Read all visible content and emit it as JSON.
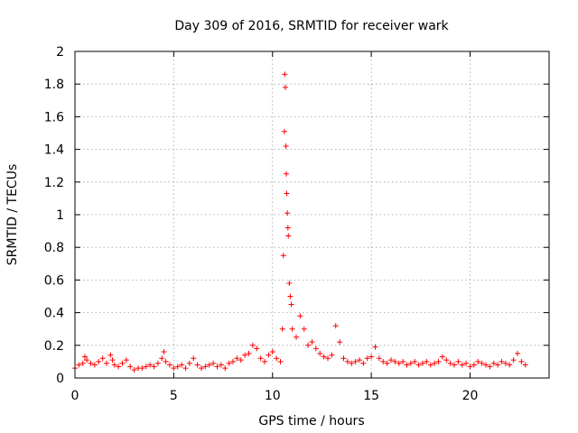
{
  "chart_data": {
    "type": "scatter",
    "title": "Day 309 of 2016, SRMTID for receiver wark",
    "xlabel": "GPS time / hours",
    "ylabel": "SRMTID / TECUs",
    "xlim": [
      0,
      24
    ],
    "ylim": [
      0,
      2
    ],
    "x_ticks": [
      0,
      5,
      10,
      15,
      20
    ],
    "y_ticks": [
      0,
      0.2,
      0.4,
      0.6,
      0.8,
      1,
      1.2,
      1.4,
      1.6,
      1.8,
      2
    ],
    "x_tick_labels": [
      "0",
      "5",
      "10",
      "15",
      "20"
    ],
    "y_tick_labels": [
      "0",
      "0.2",
      "0.4",
      "0.6",
      "0.8",
      "1",
      "1.2",
      "1.4",
      "1.6",
      "1.8",
      "2"
    ],
    "grid": true,
    "marker": "+",
    "marker_color": "#ff0000",
    "series": [
      {
        "name": "SRMTID",
        "x": [
          0.0,
          0.2,
          0.4,
          0.5,
          0.6,
          0.8,
          1.0,
          1.2,
          1.4,
          1.6,
          1.8,
          1.9,
          2.0,
          2.2,
          2.4,
          2.6,
          2.8,
          3.0,
          3.2,
          3.4,
          3.6,
          3.8,
          4.0,
          4.2,
          4.4,
          4.5,
          4.6,
          4.8,
          5.0,
          5.2,
          5.4,
          5.6,
          5.8,
          6.0,
          6.2,
          6.4,
          6.6,
          6.8,
          7.0,
          7.2,
          7.4,
          7.6,
          7.8,
          8.0,
          8.2,
          8.4,
          8.6,
          8.8,
          9.0,
          9.2,
          9.4,
          9.6,
          9.8,
          10.0,
          10.2,
          10.4,
          10.5,
          10.55,
          10.6,
          10.62,
          10.65,
          10.68,
          10.7,
          10.72,
          10.75,
          10.78,
          10.8,
          10.85,
          10.9,
          10.95,
          11.0,
          11.2,
          11.4,
          11.6,
          11.8,
          12.0,
          12.2,
          12.4,
          12.6,
          12.8,
          13.0,
          13.2,
          13.4,
          13.6,
          13.8,
          14.0,
          14.2,
          14.4,
          14.6,
          14.8,
          15.0,
          15.2,
          15.4,
          15.6,
          15.8,
          16.0,
          16.2,
          16.4,
          16.6,
          16.8,
          17.0,
          17.2,
          17.4,
          17.6,
          17.8,
          18.0,
          18.2,
          18.4,
          18.6,
          18.8,
          19.0,
          19.2,
          19.4,
          19.6,
          19.8,
          20.0,
          20.2,
          20.4,
          20.6,
          20.8,
          21.0,
          21.2,
          21.4,
          21.6,
          21.8,
          22.0,
          22.2,
          22.4,
          22.6,
          22.8
        ],
        "y": [
          0.06,
          0.08,
          0.09,
          0.13,
          0.11,
          0.09,
          0.08,
          0.1,
          0.12,
          0.09,
          0.14,
          0.11,
          0.08,
          0.07,
          0.09,
          0.11,
          0.07,
          0.05,
          0.06,
          0.06,
          0.07,
          0.08,
          0.07,
          0.09,
          0.12,
          0.16,
          0.1,
          0.08,
          0.06,
          0.07,
          0.08,
          0.06,
          0.09,
          0.12,
          0.08,
          0.06,
          0.07,
          0.08,
          0.09,
          0.07,
          0.08,
          0.06,
          0.09,
          0.1,
          0.12,
          0.11,
          0.14,
          0.15,
          0.2,
          0.18,
          0.12,
          0.1,
          0.14,
          0.16,
          0.12,
          0.1,
          0.3,
          0.75,
          1.51,
          1.86,
          1.78,
          1.42,
          1.25,
          1.13,
          1.01,
          0.92,
          0.87,
          0.58,
          0.5,
          0.45,
          0.3,
          0.25,
          0.38,
          0.3,
          0.2,
          0.22,
          0.18,
          0.15,
          0.13,
          0.12,
          0.14,
          0.32,
          0.22,
          0.12,
          0.1,
          0.09,
          0.1,
          0.11,
          0.09,
          0.12,
          0.13,
          0.19,
          0.12,
          0.1,
          0.09,
          0.11,
          0.1,
          0.09,
          0.1,
          0.08,
          0.09,
          0.1,
          0.08,
          0.09,
          0.1,
          0.08,
          0.09,
          0.1,
          0.13,
          0.11,
          0.09,
          0.08,
          0.1,
          0.08,
          0.09,
          0.07,
          0.08,
          0.1,
          0.09,
          0.08,
          0.07,
          0.09,
          0.08,
          0.1,
          0.09,
          0.08,
          0.11,
          0.15,
          0.1,
          0.08
        ]
      }
    ]
  }
}
